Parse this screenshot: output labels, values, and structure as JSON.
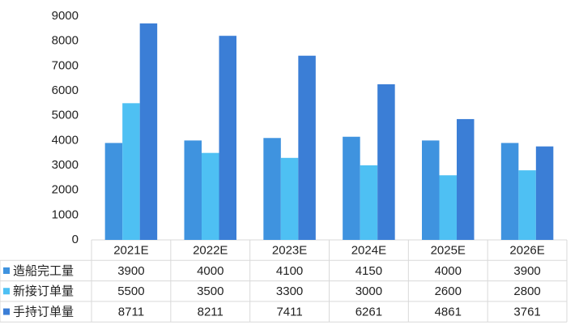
{
  "chart_data": {
    "type": "bar",
    "categories": [
      "2021E",
      "2022E",
      "2023E",
      "2024E",
      "2025E",
      "2026E"
    ],
    "series": [
      {
        "name": "造船完工量",
        "color": "#3f93df",
        "values": [
          3900,
          4000,
          4100,
          4150,
          4000,
          3900
        ]
      },
      {
        "name": "新接订单量",
        "color": "#4ec0f3",
        "values": [
          5500,
          3500,
          3300,
          3000,
          2600,
          2800
        ]
      },
      {
        "name": "手持订单量",
        "color": "#3b7ed6",
        "values": [
          8711,
          8211,
          7411,
          6261,
          4861,
          3761
        ]
      }
    ],
    "ylim": [
      0,
      9000
    ],
    "yticks": [
      0,
      1000,
      2000,
      3000,
      4000,
      5000,
      6000,
      7000,
      8000,
      9000
    ],
    "grid": false
  }
}
